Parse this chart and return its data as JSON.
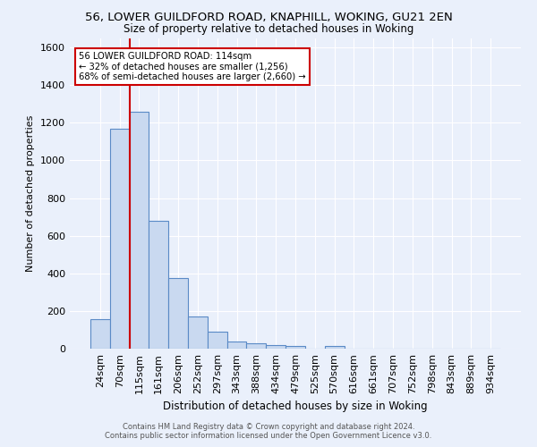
{
  "title_line1": "56, LOWER GUILDFORD ROAD, KNAPHILL, WOKING, GU21 2EN",
  "title_line2": "Size of property relative to detached houses in Woking",
  "xlabel": "Distribution of detached houses by size in Woking",
  "ylabel": "Number of detached properties",
  "footer1": "Contains HM Land Registry data © Crown copyright and database right 2024.",
  "footer2": "Contains public sector information licensed under the Open Government Licence v3.0.",
  "bar_labels": [
    "24sqm",
    "70sqm",
    "115sqm",
    "161sqm",
    "206sqm",
    "252sqm",
    "297sqm",
    "343sqm",
    "388sqm",
    "434sqm",
    "479sqm",
    "525sqm",
    "570sqm",
    "616sqm",
    "661sqm",
    "707sqm",
    "752sqm",
    "798sqm",
    "843sqm",
    "889sqm",
    "934sqm"
  ],
  "bar_values": [
    155,
    1170,
    1260,
    680,
    375,
    170,
    88,
    38,
    28,
    18,
    15,
    0,
    14,
    0,
    0,
    0,
    0,
    0,
    0,
    0,
    0
  ],
  "bar_color": "#c9d9f0",
  "bar_edgecolor": "#5a8ac6",
  "vline_color": "#cc0000",
  "annotation_text": "56 LOWER GUILDFORD ROAD: 114sqm\n← 32% of detached houses are smaller (1,256)\n68% of semi-detached houses are larger (2,660) →",
  "annotation_box_edgecolor": "#cc0000",
  "annotation_box_facecolor": "#ffffff",
  "ylim": [
    0,
    1650
  ],
  "background_color": "#eaf0fb",
  "plot_background": "#eaf0fb",
  "grid_color": "#ffffff",
  "title_fontsize": 9.5,
  "subtitle_fontsize": 8.5
}
